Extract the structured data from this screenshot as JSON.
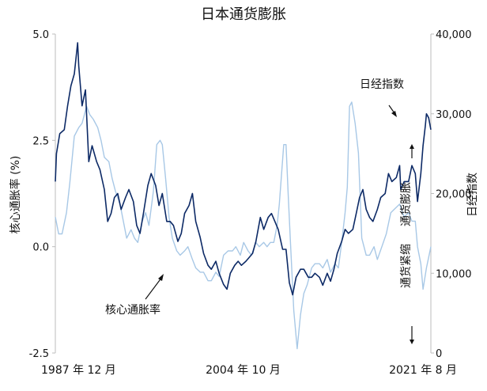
{
  "chart_data": {
    "type": "line",
    "title": "日本通货膨胀",
    "left_axis": {
      "label": "核心通胀率 (%)",
      "range": [
        -2.5,
        5.0
      ],
      "ticks": [
        "5.0",
        "2.5",
        "0.0",
        "-2.5"
      ],
      "tick_values": [
        5.0,
        2.5,
        0.0,
        -2.5
      ]
    },
    "right_axis": {
      "label": "日经指数",
      "range": [
        0,
        40000
      ],
      "ticks": [
        "40,000",
        "30,000",
        "20,000",
        "10,000",
        "0"
      ],
      "tick_values": [
        40000,
        30000,
        20000,
        10000,
        0
      ]
    },
    "x_axis": {
      "range": [
        1987.9,
        2021.6
      ],
      "ticks": [
        "1987 年 12 月",
        "2004 年 10 月",
        "2021 年 8 月"
      ],
      "tick_values": [
        1987.9,
        2004.75,
        2021.6
      ]
    },
    "annotations": {
      "core_inflation": "核心通胀率",
      "nikkei": "日经指数",
      "inflation": "通货膨胀",
      "deflation": "通货紧缩"
    },
    "colors": {
      "core_inflation": "#a8c8e6",
      "nikkei": "#0d2a66",
      "axis": "#bdbdbd",
      "text": "#111111"
    },
    "series": [
      {
        "name": "核心通胀率",
        "axis": "left",
        "x": [
          1987.9,
          1988.2,
          1988.5,
          1988.9,
          1989.2,
          1989.6,
          1990.0,
          1990.3,
          1990.7,
          1991.0,
          1991.3,
          1991.7,
          1992.0,
          1992.3,
          1992.7,
          1993.0,
          1993.3,
          1993.7,
          1994.0,
          1994.3,
          1994.7,
          1995.0,
          1995.3,
          1995.7,
          1996.0,
          1996.3,
          1996.7,
          1997.0,
          1997.3,
          1997.5,
          1997.8,
          1998.1,
          1998.4,
          1998.8,
          1999.1,
          1999.5,
          1999.8,
          2000.2,
          2000.5,
          2000.9,
          2001.2,
          2001.6,
          2001.9,
          2002.3,
          2002.6,
          2003.0,
          2003.4,
          2003.8,
          2004.1,
          2004.5,
          2004.8,
          2005.2,
          2005.5,
          2005.9,
          2006.2,
          2006.6,
          2006.9,
          2007.2,
          2007.5,
          2007.8,
          2008.0,
          2008.2,
          2008.4,
          2008.6,
          2008.8,
          2009.0,
          2009.3,
          2009.6,
          2009.9,
          2010.2,
          2010.5,
          2010.9,
          2011.2,
          2011.6,
          2011.9,
          2012.3,
          2012.6,
          2013.0,
          2013.3,
          2013.6,
          2013.9,
          2014.1,
          2014.3,
          2014.5,
          2014.8,
          2015.1,
          2015.4,
          2015.8,
          2016.1,
          2016.5,
          2016.8,
          2017.2,
          2017.6,
          2018.0,
          2018.4,
          2018.8,
          2019.2,
          2019.6,
          2019.9,
          2020.2,
          2020.4,
          2020.7,
          2020.9,
          2021.2,
          2021.6
        ],
        "values": [
          0.7,
          0.3,
          0.3,
          0.8,
          1.5,
          2.6,
          2.8,
          2.9,
          3.3,
          3.1,
          3.0,
          2.8,
          2.5,
          2.1,
          2.0,
          1.6,
          1.3,
          1.0,
          0.6,
          0.2,
          0.4,
          0.2,
          0.1,
          0.6,
          0.8,
          0.5,
          1.3,
          2.4,
          2.5,
          2.4,
          1.6,
          0.7,
          0.2,
          -0.1,
          -0.2,
          -0.1,
          0.0,
          -0.3,
          -0.5,
          -0.6,
          -0.6,
          -0.8,
          -0.8,
          -0.6,
          -0.7,
          -0.2,
          -0.1,
          -0.1,
          0.0,
          -0.2,
          0.1,
          -0.1,
          -0.2,
          0.1,
          0.0,
          0.1,
          0.0,
          0.1,
          0.1,
          0.5,
          1.0,
          1.7,
          2.4,
          2.4,
          1.2,
          0.1,
          -1.5,
          -2.4,
          -1.6,
          -1.1,
          -0.9,
          -0.5,
          -0.4,
          -0.4,
          -0.5,
          -0.3,
          -0.6,
          -0.4,
          -0.5,
          0.1,
          0.8,
          1.4,
          3.3,
          3.4,
          2.9,
          2.2,
          0.2,
          -0.2,
          -0.2,
          0.0,
          -0.3,
          0.0,
          0.3,
          0.8,
          0.9,
          1.0,
          0.7,
          0.8,
          0.6,
          0.6,
          0.0,
          -0.4,
          -1.0,
          -0.5,
          0.0
        ]
      },
      {
        "name": "日经指数",
        "axis": "right",
        "x": [
          1987.9,
          1988.0,
          1988.3,
          1988.7,
          1989.0,
          1989.3,
          1989.6,
          1989.9,
          1990.0,
          1990.3,
          1990.6,
          1990.9,
          1991.2,
          1991.6,
          1991.9,
          1992.3,
          1992.6,
          1992.9,
          1993.2,
          1993.5,
          1993.8,
          1994.2,
          1994.5,
          1994.9,
          1995.2,
          1995.5,
          1995.8,
          1996.2,
          1996.5,
          1996.9,
          1997.2,
          1997.5,
          1997.9,
          1998.2,
          1998.5,
          1998.9,
          1999.2,
          1999.5,
          1999.9,
          2000.2,
          2000.5,
          2000.9,
          2001.2,
          2001.6,
          2001.9,
          2002.3,
          2002.6,
          2003.0,
          2003.3,
          2003.6,
          2004.0,
          2004.3,
          2004.6,
          2005.0,
          2005.3,
          2005.6,
          2005.9,
          2006.3,
          2006.6,
          2007.0,
          2007.3,
          2007.6,
          2007.9,
          2008.3,
          2008.6,
          2008.9,
          2009.2,
          2009.5,
          2009.9,
          2010.2,
          2010.6,
          2010.9,
          2011.2,
          2011.6,
          2011.9,
          2012.3,
          2012.6,
          2012.9,
          2013.2,
          2013.6,
          2013.9,
          2014.2,
          2014.6,
          2014.9,
          2015.2,
          2015.5,
          2015.8,
          2016.1,
          2016.4,
          2016.8,
          2017.1,
          2017.5,
          2017.8,
          2018.1,
          2018.5,
          2018.8,
          2018.9,
          2019.2,
          2019.6,
          2019.9,
          2020.2,
          2020.4,
          2020.7,
          2020.9,
          2021.1,
          2021.2,
          2021.4,
          2021.6
        ],
        "values": [
          21500,
          25000,
          27500,
          28000,
          31000,
          33500,
          35000,
          38900,
          36000,
          31000,
          33000,
          24000,
          26000,
          24000,
          23000,
          20500,
          16500,
          17500,
          19500,
          20000,
          18000,
          19500,
          20500,
          19000,
          16000,
          15000,
          17500,
          21000,
          22500,
          21000,
          18500,
          20000,
          16500,
          16500,
          16000,
          14000,
          15000,
          17500,
          18500,
          20000,
          16500,
          14500,
          12500,
          11000,
          10500,
          11500,
          10000,
          8600,
          8000,
          10000,
          11000,
          11500,
          11000,
          11500,
          12000,
          12500,
          14000,
          17000,
          15500,
          17000,
          17500,
          16500,
          15500,
          13000,
          13000,
          8800,
          7300,
          9500,
          10500,
          10500,
          9500,
          9500,
          10000,
          9500,
          8500,
          10000,
          9000,
          10500,
          12500,
          14000,
          15500,
          15000,
          15500,
          17500,
          19500,
          20500,
          18000,
          17000,
          16500,
          18000,
          19500,
          20000,
          22500,
          21500,
          22000,
          23500,
          20500,
          21500,
          21500,
          23500,
          22500,
          19000,
          22500,
          26000,
          28500,
          30000,
          29500,
          28000
        ]
      }
    ]
  }
}
